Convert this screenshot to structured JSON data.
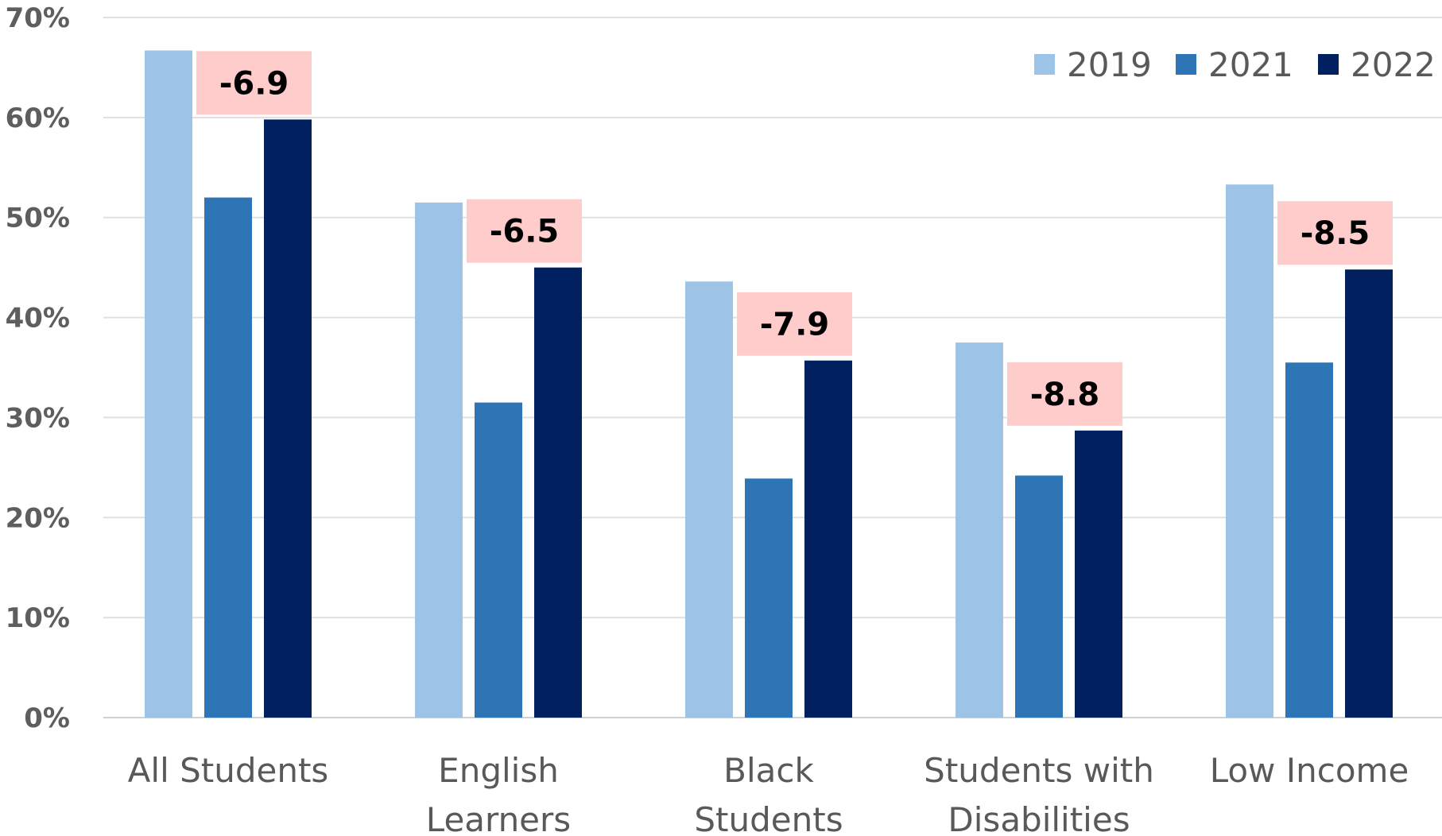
{
  "chart_data": {
    "type": "bar",
    "categories": [
      [
        "All Students"
      ],
      [
        "English",
        "Learners"
      ],
      [
        "Black",
        "Students"
      ],
      [
        "Students with",
        "Disabilities"
      ],
      [
        "Low Income"
      ]
    ],
    "series": [
      {
        "name": "2019",
        "color": "#9dc3e6",
        "values": [
          66.7,
          51.5,
          43.6,
          37.5,
          53.3
        ]
      },
      {
        "name": "2021",
        "color": "#2e75b6",
        "values": [
          52.0,
          31.5,
          23.9,
          24.2,
          35.5
        ]
      },
      {
        "name": "2022",
        "color": "#002060",
        "values": [
          59.8,
          45.0,
          35.7,
          28.7,
          44.8
        ]
      }
    ],
    "annotations": [
      "-6.9",
      "-6.5",
      "-7.9",
      "-8.8",
      "-8.5"
    ],
    "annotation_color": "#ffcccc",
    "yticks": [
      "0%",
      "10%",
      "20%",
      "30%",
      "40%",
      "50%",
      "60%",
      "70%"
    ],
    "ylim": [
      0,
      70
    ],
    "grid": true,
    "legend_position": "top-right",
    "title": "",
    "xlabel": "",
    "ylabel": ""
  }
}
